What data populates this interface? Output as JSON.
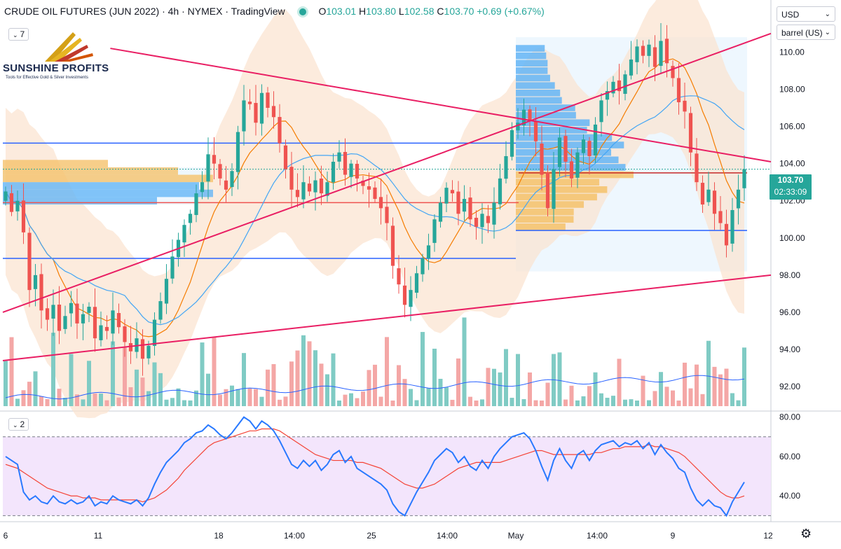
{
  "header": {
    "symbol": "CRUDE OIL FUTURES (JUN 2022) · 4h · NYMEX · TradingView",
    "open_label": "O",
    "open": "103.01",
    "high_label": "H",
    "high": "103.80",
    "low_label": "L",
    "low": "102.58",
    "close_label": "C",
    "close": "103.70",
    "change": "+0.69 (+0.67%)"
  },
  "controls": {
    "indicators_main": "7",
    "indicators_sub": "2",
    "currency": "USD",
    "unit": "barrel (US)",
    "chev": "⌄",
    "settings_icon": "gear-icon",
    "settings_glyph": "⚙"
  },
  "logo": {
    "name": "SUNSHINE PROFITS",
    "tagline": "Tools for Effective Gold & Silver Investments"
  },
  "last_price": {
    "value": "103.70",
    "countdown": "02:33:09"
  },
  "colors": {
    "up": "#26a69a",
    "down": "#ef5350",
    "channel": "#e91e63",
    "level": "#2962ff",
    "rsi": "#2979ff",
    "rsi_ma": "#f44336",
    "rsi_band": "#f3e5fc"
  },
  "chart_data": [
    {
      "type": "candlestick",
      "ylim": [
        90.8,
        112.5
      ],
      "y_ticks": [
        "110.00",
        "108.00",
        "106.00",
        "104.00",
        "102.00",
        "100.00",
        "98.00",
        "96.00",
        "94.00",
        "92.00"
      ],
      "x_ticks": [
        "6",
        "11",
        "18",
        "14:00",
        "25",
        "14:00",
        "May",
        "14:00",
        "9",
        "12"
      ],
      "closes": [
        102.5,
        101.4,
        102.0,
        100.3,
        97.2,
        98.0,
        96.1,
        95.6,
        96.4,
        95.0,
        95.8,
        96.5,
        95.4,
        95.9,
        96.3,
        94.6,
        95.3,
        95.0,
        96.1,
        95.2,
        94.4,
        93.9,
        94.6,
        93.5,
        94.2,
        95.6,
        96.6,
        97.8,
        99.0,
        99.9,
        100.7,
        101.3,
        102.4,
        103.0,
        104.5,
        104.0,
        103.2,
        102.6,
        103.6,
        105.7,
        107.4,
        107.2,
        106.2,
        107.8,
        107.0,
        106.5,
        105.1,
        103.7,
        102.6,
        102.2,
        103.0,
        102.5,
        103.1,
        102.4,
        103.0,
        104.1,
        104.6,
        103.4,
        104.0,
        103.2,
        102.8,
        102.6,
        102.1,
        101.6,
        100.8,
        98.5,
        97.5,
        96.4,
        97.2,
        98.1,
        98.9,
        99.6,
        101.0,
        101.9,
        102.7,
        102.4,
        101.3,
        102.1,
        101.0,
        100.6,
        101.3,
        100.8,
        101.9,
        103.2,
        104.4,
        105.8,
        106.2,
        106.9,
        106.3,
        105.2,
        103.4,
        101.6,
        103.7,
        105.4,
        104.1,
        103.2,
        104.6,
        105.3,
        104.4,
        106.1,
        107.4,
        107.9,
        108.4,
        107.9,
        108.8,
        109.6,
        110.3,
        109.8,
        110.4,
        109.2,
        110.6,
        109.4,
        108.6,
        107.3,
        106.8,
        104.6,
        103.0,
        101.8,
        102.6,
        101.3,
        100.8,
        99.6,
        101.5,
        102.6,
        103.7
      ],
      "channel_lines": [
        {
          "name": "",
          "from": [
            0,
            96.0
          ],
          "to": [
            1,
            111.0
          ]
        },
        {
          "name": "",
          "from": [
            0,
            93.4
          ],
          "to": [
            1,
            98.0
          ]
        },
        {
          "name": "",
          "from": [
            0.14,
            110.2
          ],
          "to": [
            1,
            104.1
          ]
        }
      ]
    },
    {
      "type": "line",
      "ylim": [
        28,
        82
      ],
      "y_ticks": [
        "80.00",
        "60.00",
        "40.00"
      ],
      "band": [
        30,
        70
      ],
      "rsi": [
        60,
        58,
        56,
        42,
        38,
        40,
        37,
        36,
        40,
        37,
        36,
        38,
        36,
        37,
        40,
        35,
        37,
        36,
        40,
        38,
        37,
        36,
        38,
        35,
        39,
        46,
        52,
        57,
        60,
        63,
        67,
        69,
        72,
        73,
        76,
        74,
        71,
        69,
        72,
        76,
        80,
        78,
        74,
        78,
        76,
        73,
        68,
        62,
        56,
        54,
        58,
        55,
        58,
        53,
        56,
        61,
        63,
        57,
        60,
        54,
        52,
        50,
        48,
        46,
        43,
        36,
        32,
        30,
        36,
        42,
        47,
        52,
        58,
        61,
        64,
        62,
        57,
        60,
        55,
        53,
        58,
        54,
        60,
        64,
        67,
        70,
        71,
        72,
        69,
        63,
        55,
        48,
        58,
        64,
        58,
        54,
        61,
        63,
        58,
        63,
        66,
        67,
        68,
        65,
        67,
        66,
        68,
        64,
        67,
        61,
        66,
        62,
        59,
        54,
        52,
        44,
        38,
        35,
        38,
        35,
        34,
        30,
        37,
        42,
        47
      ],
      "rsi_ma": [
        56,
        55,
        54,
        52,
        50,
        48,
        46,
        44,
        43,
        42,
        41,
        40,
        40,
        39,
        39,
        39,
        38,
        38,
        38,
        38,
        38,
        38,
        38,
        37,
        38,
        39,
        41,
        43,
        46,
        49,
        53,
        56,
        59,
        62,
        65,
        67,
        68,
        69,
        70,
        71,
        72,
        73,
        73,
        74,
        74,
        74,
        73,
        71,
        69,
        67,
        65,
        63,
        61,
        60,
        59,
        58,
        58,
        58,
        58,
        57,
        57,
        56,
        55,
        54,
        52,
        50,
        48,
        46,
        45,
        44,
        44,
        45,
        46,
        48,
        50,
        52,
        54,
        55,
        56,
        57,
        57,
        57,
        57,
        57,
        58,
        59,
        60,
        61,
        62,
        63,
        63,
        62,
        61,
        61,
        61,
        61,
        61,
        61,
        61,
        62,
        62,
        63,
        64,
        64,
        65,
        65,
        65,
        65,
        66,
        65,
        65,
        64,
        63,
        62,
        60,
        57,
        54,
        51,
        48,
        45,
        42,
        40,
        39,
        39,
        40
      ]
    }
  ]
}
